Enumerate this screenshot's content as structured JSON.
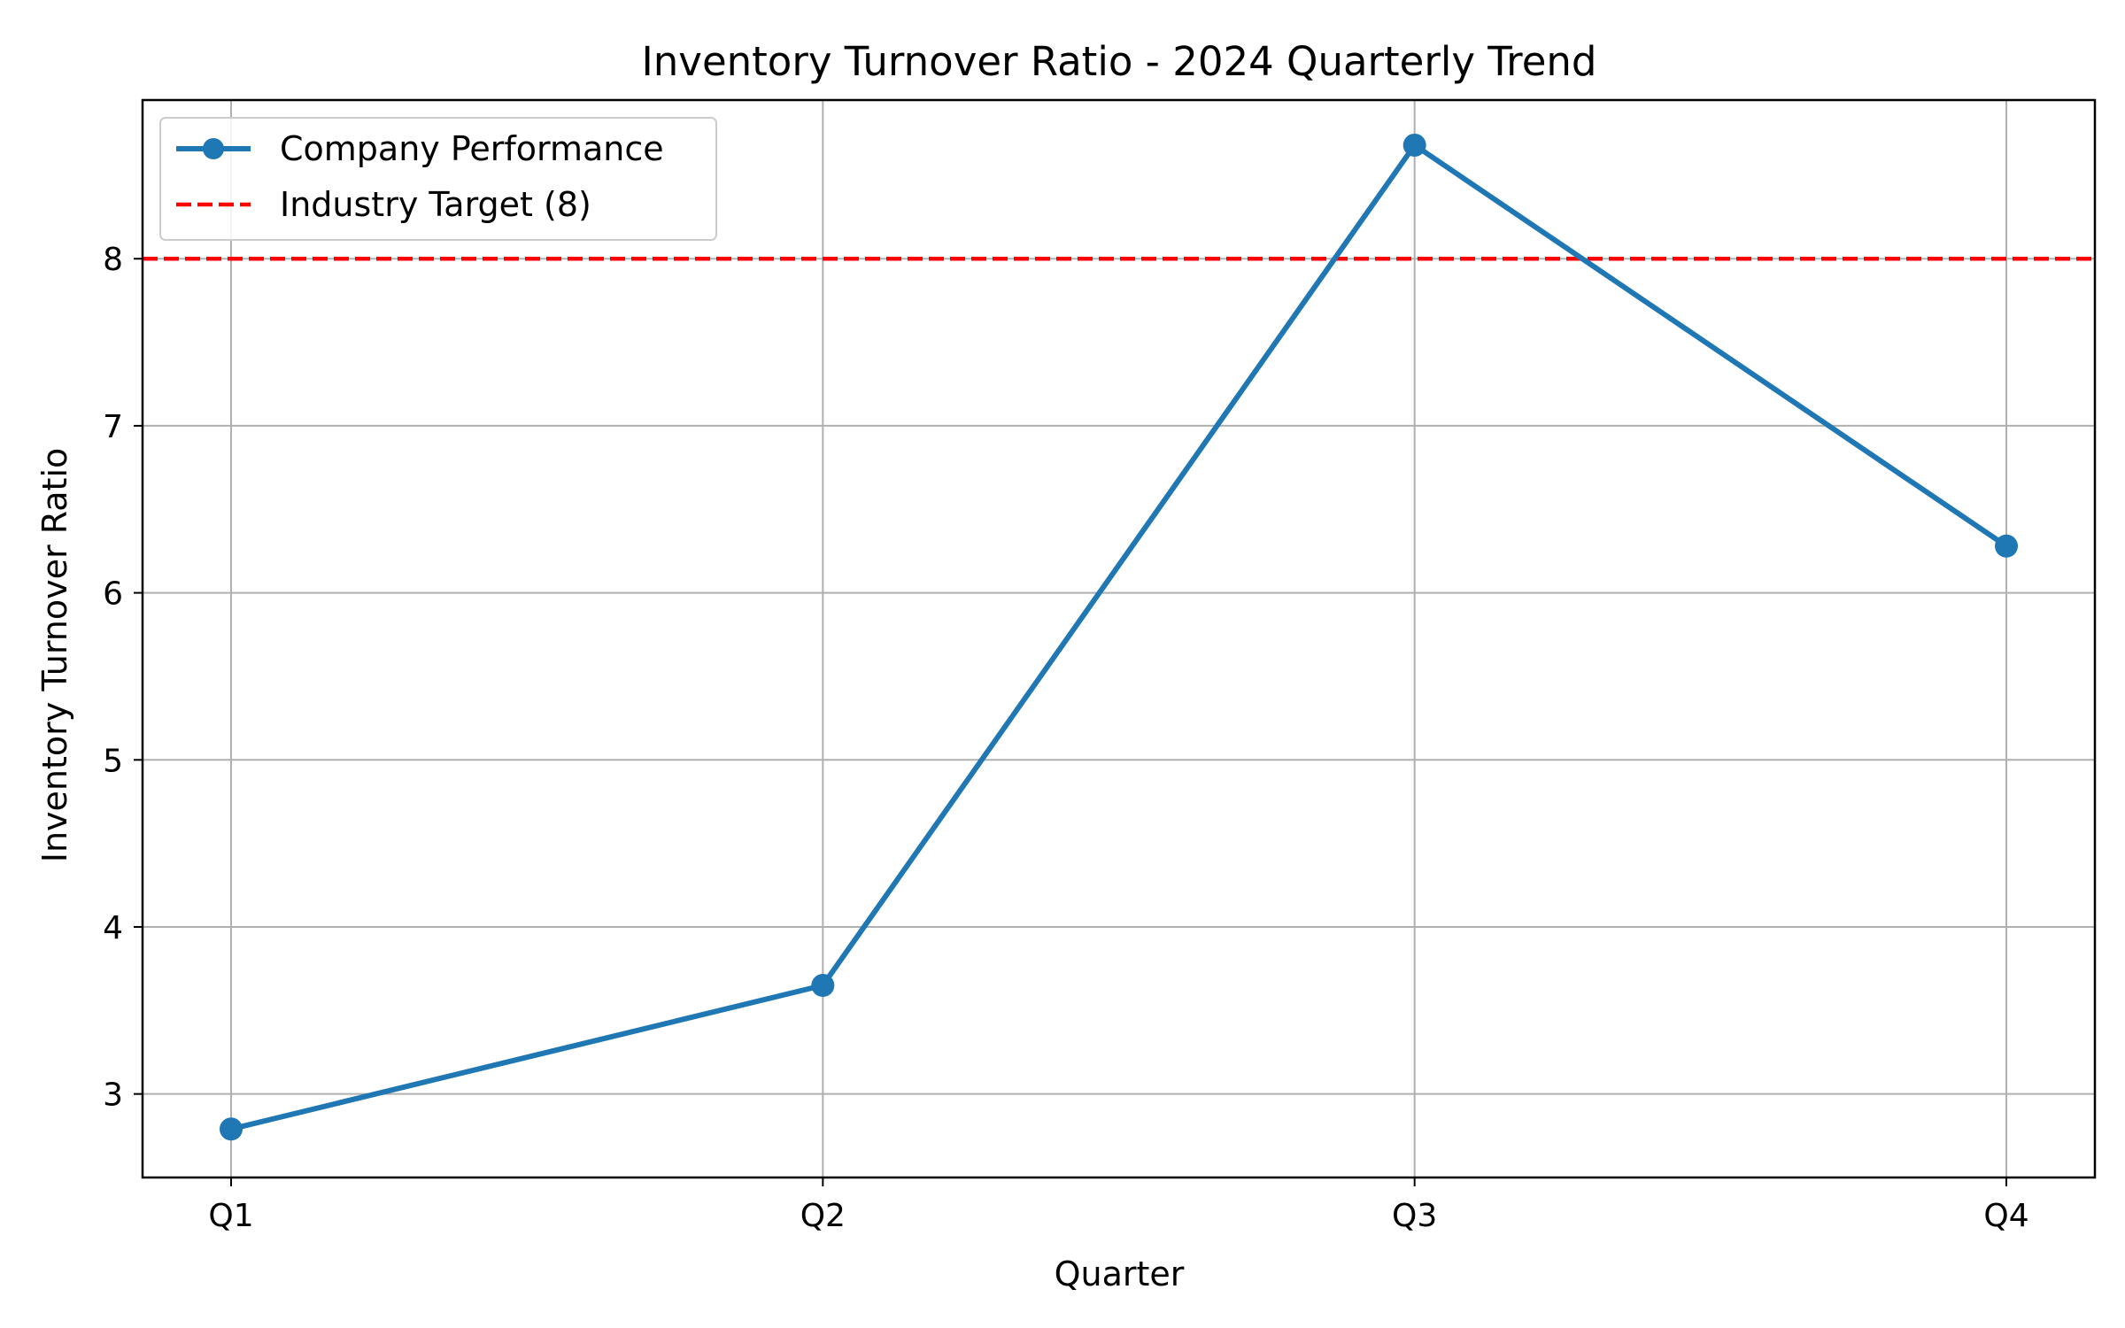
{
  "chart_data": {
    "type": "line",
    "title": "Inventory Turnover Ratio - 2024 Quarterly Trend",
    "xlabel": "Quarter",
    "ylabel": "Inventory Turnover Ratio",
    "categories": [
      "Q1",
      "Q2",
      "Q3",
      "Q4"
    ],
    "series": [
      {
        "name": "Company Performance",
        "values": [
          2.79,
          3.65,
          8.68,
          6.28
        ],
        "color": "#1f77b4",
        "marker": "circle",
        "line_style": "solid"
      }
    ],
    "reference_lines": [
      {
        "name": "Industry Target (8)",
        "value": 8,
        "color": "#ff0000",
        "line_style": "dashed"
      }
    ],
    "yticks": [
      3,
      4,
      5,
      6,
      7,
      8
    ],
    "ylim": [
      2.5,
      8.95
    ],
    "grid": true,
    "legend_position": "top-left"
  }
}
